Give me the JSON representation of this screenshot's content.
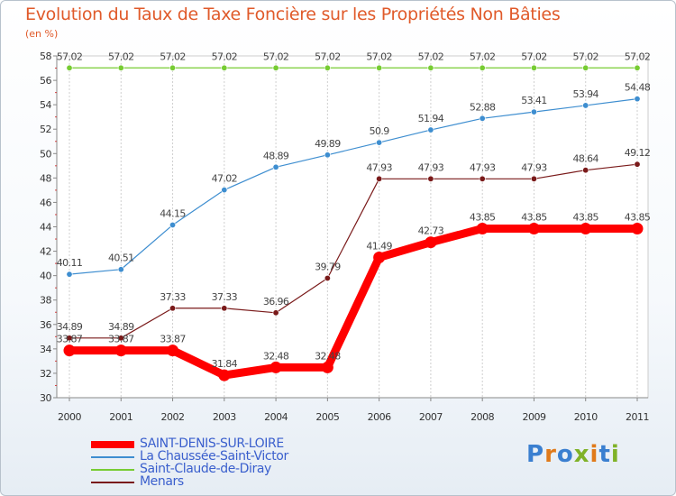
{
  "header": {
    "title": "Evolution du Taux de Taxe Foncière sur les Propriétés Non Bâties",
    "subtitle": "(en %)"
  },
  "brand": {
    "logo_text": "Proxiti",
    "logo_colors": [
      "#3a7fd0",
      "#e07a1a",
      "#3a7fd0",
      "#7fb228",
      "#e07a1a",
      "#3a7fd0",
      "#7fb228"
    ]
  },
  "chart_data": {
    "type": "line",
    "title": "Evolution du Taux de Taxe Foncière sur les Propriétés Non Bâties",
    "ylabel": "(en %)",
    "xlabel": "",
    "x": [
      "2000",
      "2001",
      "2002",
      "2003",
      "2004",
      "2005",
      "2006",
      "2007",
      "2008",
      "2009",
      "2010",
      "2011"
    ],
    "ylim": [
      30,
      58
    ],
    "yticks": [
      30,
      32,
      34,
      36,
      38,
      40,
      42,
      44,
      46,
      48,
      50,
      52,
      54,
      56,
      58
    ],
    "grid": "vertical",
    "legend_position": "bottom-left",
    "series": [
      {
        "name": "SAINT-DENIS-SUR-LOIRE",
        "color": "#ff0000",
        "values": [
          33.87,
          33.87,
          33.87,
          31.84,
          32.48,
          32.48,
          41.49,
          42.73,
          43.85,
          43.85,
          43.85,
          43.85
        ],
        "labels": [
          "33.87",
          "33.87",
          "33.87",
          "31.84",
          "32.48",
          "32.48",
          "41.49",
          "42.73",
          "43.85",
          "43.85",
          "43.85",
          "43.85"
        ]
      },
      {
        "name": "La Chaussée-Saint-Victor",
        "color": "#3e8ed0",
        "values": [
          40.11,
          40.51,
          44.15,
          47.02,
          48.89,
          49.89,
          50.9,
          51.94,
          52.88,
          53.41,
          53.94,
          54.48
        ],
        "labels": [
          "40.11",
          "40.51",
          "44.15",
          "47.02",
          "48.89",
          "49.89",
          "50.9",
          "51.94",
          "52.88",
          "53.41",
          "53.94",
          "54.48"
        ]
      },
      {
        "name": "Saint-Claude-de-Diray",
        "color": "#77cc33",
        "values": [
          57.02,
          57.02,
          57.02,
          57.02,
          57.02,
          57.02,
          57.02,
          57.02,
          57.02,
          57.02,
          57.02,
          57.02
        ],
        "labels": [
          "57.02",
          "57.02",
          "57.02",
          "57.02",
          "57.02",
          "57.02",
          "57.02",
          "57.02",
          "57.02",
          "57.02",
          "57.02",
          "57.02"
        ]
      },
      {
        "name": "Menars",
        "color": "#7a1a1a",
        "values": [
          34.89,
          34.89,
          37.33,
          37.33,
          36.96,
          39.79,
          47.93,
          47.93,
          47.93,
          47.93,
          48.64,
          49.12
        ],
        "labels": [
          "34.89",
          "34.89",
          "37.33",
          "37.33",
          "36.96",
          "39.79",
          "47.93",
          "47.93",
          "47.93",
          "47.93",
          "48.64",
          "49.12"
        ]
      }
    ]
  }
}
